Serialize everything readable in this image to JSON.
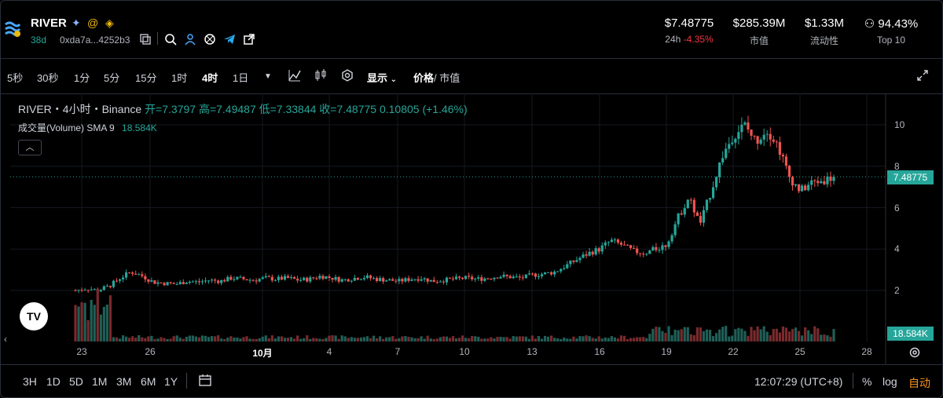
{
  "header": {
    "token": "RIVER",
    "age": "38d",
    "address": "0xda7a...4252b3",
    "stats": [
      {
        "value": "$7.48775",
        "label_prefix": "24h",
        "label_change": "-4.35%"
      },
      {
        "value": "$285.39M",
        "label": "市值"
      },
      {
        "value": "$1.33M",
        "label": "流动性"
      },
      {
        "value": "94.43%",
        "label": "Top 10"
      }
    ]
  },
  "toolbar": {
    "timeframes": [
      "5秒",
      "30秒",
      "1分",
      "5分",
      "15分",
      "1时",
      "4时",
      "1日"
    ],
    "active": "4时",
    "display": "显示",
    "price": "价格",
    "mcap": "/ 市值"
  },
  "legend": {
    "symbol": "RIVER・4小时・Binance",
    "ohlc": "开=7.3797 高=7.49487 低=7.33844 收=7.48775 0.10805 (+1.46%)",
    "volume_label": "成交量(Volume) SMA 9",
    "volume_value": "18.584K"
  },
  "chart_data": {
    "type": "candlestick",
    "yticks": [
      "10",
      "8",
      "6",
      "4",
      "2"
    ],
    "xticks": [
      "23",
      "26",
      "10月",
      "4",
      "7",
      "10",
      "13",
      "16",
      "19",
      "22",
      "25",
      "28"
    ],
    "last_price": "7.48775",
    "last_volume": "18.584K",
    "close_series": [
      2.0,
      2.1,
      2.0,
      2.2,
      2.6,
      2.9,
      2.7,
      2.4,
      2.35,
      2.3,
      2.45,
      2.4,
      2.5,
      2.45,
      2.6,
      2.55,
      2.5,
      2.6,
      2.55,
      2.6,
      2.5,
      2.55,
      2.7,
      2.6,
      2.5,
      2.6,
      2.65,
      2.55,
      2.5,
      2.45,
      2.55,
      2.6,
      2.45,
      2.5,
      2.55,
      2.6,
      2.55,
      2.6,
      2.7,
      2.65,
      2.6,
      2.75,
      2.8,
      2.9,
      3.2,
      3.5,
      3.8,
      4.0,
      4.4,
      4.2,
      3.9,
      3.8,
      4.0,
      4.2,
      5.5,
      6.5,
      5.2,
      6.8,
      8.5,
      9.5,
      10.0,
      9.2,
      9.8,
      9.0,
      7.5,
      6.8,
      7.2,
      7.3,
      7.49
    ]
  },
  "bottom": {
    "ranges": [
      "3H",
      "1D",
      "5D",
      "1M",
      "3M",
      "6M",
      "1Y"
    ],
    "clock": "12:07:29 (UTC+8)",
    "pct": "%",
    "log": "log",
    "auto": "自动"
  }
}
